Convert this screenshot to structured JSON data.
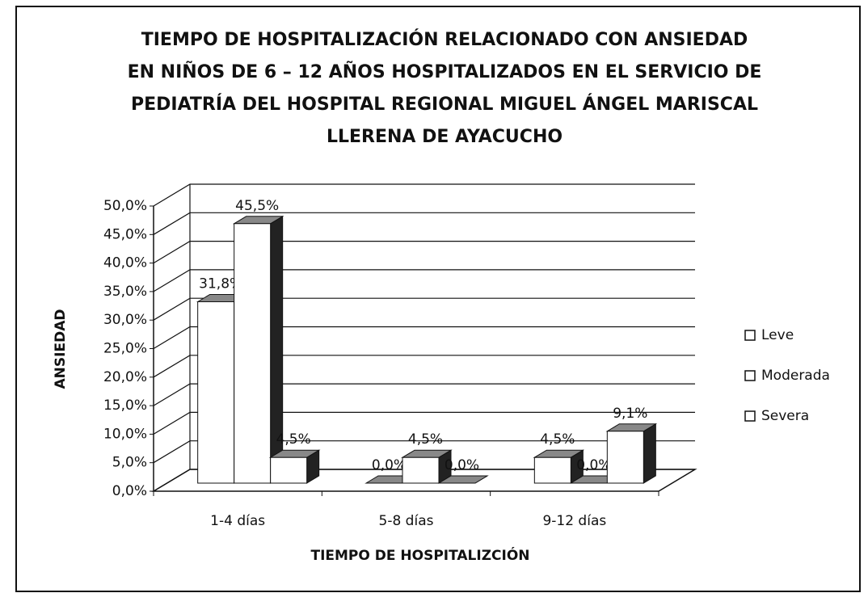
{
  "chart_data": {
    "type": "bar3d",
    "title": [
      "TIEMPO DE HOSPITALIZACIÓN RELACIONADO CON ANSIEDAD",
      "EN NIÑOS DE 6 – 12 AÑOS HOSPITALIZADOS EN EL SERVICIO DE",
      "PEDIATRÍA DEL HOSPITAL REGIONAL MIGUEL ÁNGEL MARISCAL",
      "LLERENA DE AYACUCHO"
    ],
    "x_label": "TIEMPO DE HOSPITALIZCIÓN",
    "y_label": "ANSIEDAD",
    "categories": [
      "1-4 días",
      "5-8 días",
      "9-12 días"
    ],
    "series": [
      {
        "name": "Leve",
        "color": "#ffffff",
        "values": [
          31.8,
          0.0,
          4.5
        ],
        "value_labels": [
          "31,8%",
          "0,0%",
          "4,5%"
        ]
      },
      {
        "name": "Moderada",
        "color": "#ffffff",
        "values": [
          45.5,
          4.5,
          0.0
        ],
        "value_labels": [
          "45,5%",
          "4,5%",
          "0,0%"
        ]
      },
      {
        "name": "Severa",
        "color": "#ffffff",
        "values": [
          4.5,
          0.0,
          9.1
        ],
        "value_labels": [
          "4,5%",
          "0,0%",
          "9,1%"
        ]
      }
    ],
    "ylim": [
      0,
      50
    ],
    "yticks": [
      {
        "value": 0,
        "label": "0,0%"
      },
      {
        "value": 5,
        "label": "5,0%"
      },
      {
        "value": 10,
        "label": "10,0%"
      },
      {
        "value": 15,
        "label": "15,0%"
      },
      {
        "value": 20,
        "label": "20,0%"
      },
      {
        "value": 25,
        "label": "25,0%"
      },
      {
        "value": 30,
        "label": "30,0%"
      },
      {
        "value": 35,
        "label": "35,0%"
      },
      {
        "value": 40,
        "label": "40,0%"
      },
      {
        "value": 45,
        "label": "45,0%"
      },
      {
        "value": 50,
        "label": "50,0%"
      }
    ],
    "grid": true,
    "legend": "right"
  }
}
